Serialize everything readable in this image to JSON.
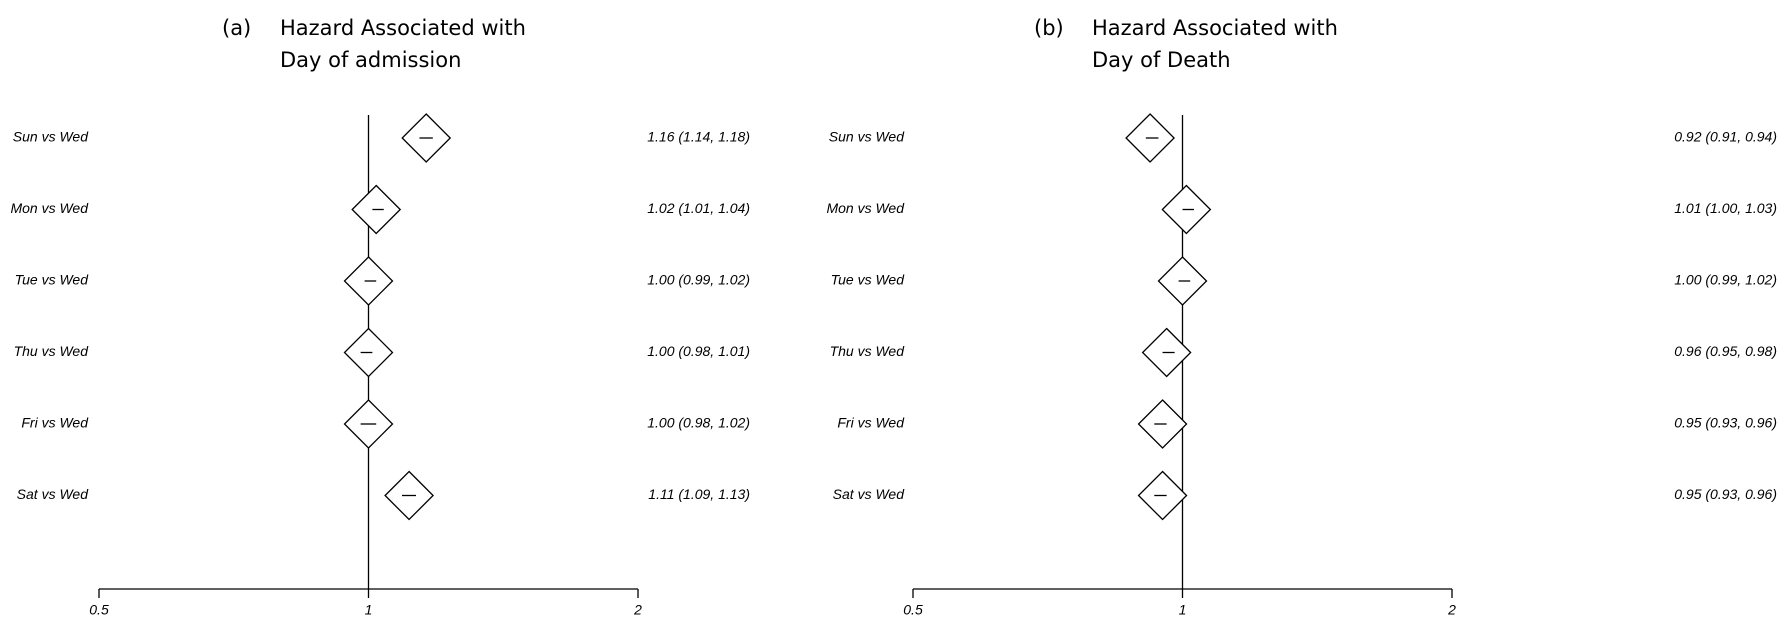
{
  "chart_data": [
    {
      "type": "forest",
      "panel_tag": "(a)",
      "title_lines": [
        "Hazard Associated with",
        "Day of admission"
      ],
      "scale": "log",
      "xlim": [
        0.5,
        2
      ],
      "xticks": [
        0.5,
        1,
        2
      ],
      "tick_labels": [
        "0.5",
        "1",
        "2"
      ],
      "reference": 1,
      "rows": [
        {
          "label": "Sun vs Wed",
          "estimate": 1.16,
          "lower": 1.14,
          "upper": 1.18,
          "text": "1.16 (1.14, 1.18)"
        },
        {
          "label": "Mon vs Wed",
          "estimate": 1.02,
          "lower": 1.01,
          "upper": 1.04,
          "text": "1.02 (1.01, 1.04)"
        },
        {
          "label": "Tue vs Wed",
          "estimate": 1.0,
          "lower": 0.99,
          "upper": 1.02,
          "text": "1.00 (0.99, 1.02)"
        },
        {
          "label": "Thu vs Wed",
          "estimate": 1.0,
          "lower": 0.98,
          "upper": 1.01,
          "text": "1.00 (0.98, 1.01)"
        },
        {
          "label": "Fri vs Wed",
          "estimate": 1.0,
          "lower": 0.98,
          "upper": 1.02,
          "text": "1.00 (0.98, 1.02)"
        },
        {
          "label": "Sat vs Wed",
          "estimate": 1.11,
          "lower": 1.09,
          "upper": 1.13,
          "text": "1.11 (1.09, 1.13)"
        }
      ]
    },
    {
      "type": "forest",
      "panel_tag": "(b)",
      "title_lines": [
        "Hazard Associated with",
        "Day of Death"
      ],
      "scale": "log",
      "xlim": [
        0.5,
        2
      ],
      "xticks": [
        0.5,
        1,
        2
      ],
      "tick_labels": [
        "0.5",
        "1",
        "2"
      ],
      "reference": 1,
      "rows": [
        {
          "label": "Sun vs Wed",
          "estimate": 0.92,
          "lower": 0.91,
          "upper": 0.94,
          "text": "0.92 (0.91, 0.94)"
        },
        {
          "label": "Mon vs Wed",
          "estimate": 1.01,
          "lower": 1.0,
          "upper": 1.03,
          "text": "1.01 (1.00, 1.03)"
        },
        {
          "label": "Tue vs Wed",
          "estimate": 1.0,
          "lower": 0.99,
          "upper": 1.02,
          "text": "1.00 (0.99, 1.02)"
        },
        {
          "label": "Thu vs Wed",
          "estimate": 0.96,
          "lower": 0.95,
          "upper": 0.98,
          "text": "0.96 (0.95, 0.98)"
        },
        {
          "label": "Fri vs Wed",
          "estimate": 0.95,
          "lower": 0.93,
          "upper": 0.96,
          "text": "0.95 (0.93, 0.96)"
        },
        {
          "label": "Sat vs Wed",
          "estimate": 0.95,
          "lower": 0.93,
          "upper": 0.96,
          "text": "0.95 (0.93, 0.96)"
        }
      ]
    }
  ]
}
